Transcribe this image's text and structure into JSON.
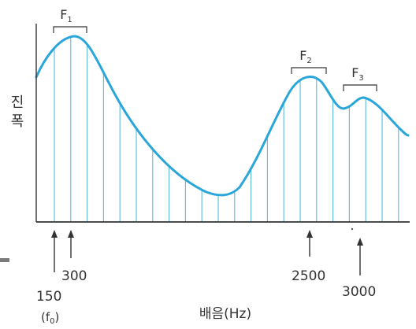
{
  "y_axis_label": "진폭",
  "x_axis_label": "배음(Hz)",
  "formants": [
    {
      "name": "F",
      "sub": "1"
    },
    {
      "name": "F",
      "sub": "2"
    },
    {
      "name": "F",
      "sub": "3"
    }
  ],
  "markers": [
    {
      "value": "150",
      "note": "(f",
      "note_sub": "0",
      "note_end": ")"
    },
    {
      "value": "300"
    },
    {
      "value": "2500"
    },
    {
      "value": "3000"
    }
  ],
  "colors": {
    "envelope": "#2aa6d8",
    "harmonics": "#5ab8de",
    "axis": "#333333"
  }
}
